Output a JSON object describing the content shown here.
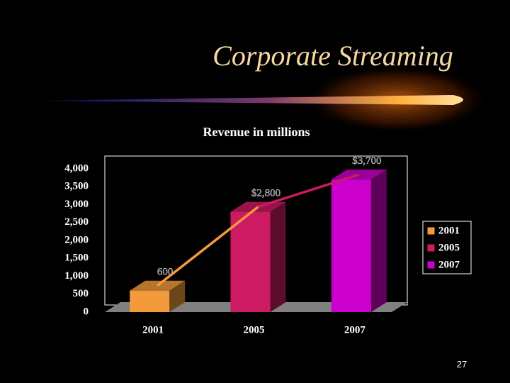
{
  "slide_title": "Corporate Streaming",
  "page_number": 27,
  "chart_data": {
    "type": "bar3d",
    "title": "Revenue in millions",
    "categories": [
      "2001",
      "2005",
      "2007"
    ],
    "values": [
      600,
      2800,
      3700
    ],
    "value_labels": [
      "600",
      "$2,800",
      "$3,700"
    ],
    "colors": [
      "#f39a3c",
      "#cc1a63",
      "#cc00cc"
    ],
    "ylim": [
      0,
      4000
    ],
    "yticks": [
      0,
      500,
      {
        "value": 1000,
        "label": "1,000"
      },
      {
        "value": 1500,
        "label": "1,500"
      },
      {
        "value": 2000,
        "label": "2,000"
      },
      {
        "value": 2500,
        "label": "2,500"
      },
      {
        "value": 3000,
        "label": "3,000"
      },
      {
        "value": 3500,
        "label": "3,500"
      },
      {
        "value": 4000,
        "label": "4,000"
      }
    ],
    "legend": "right",
    "trend_line": true
  }
}
